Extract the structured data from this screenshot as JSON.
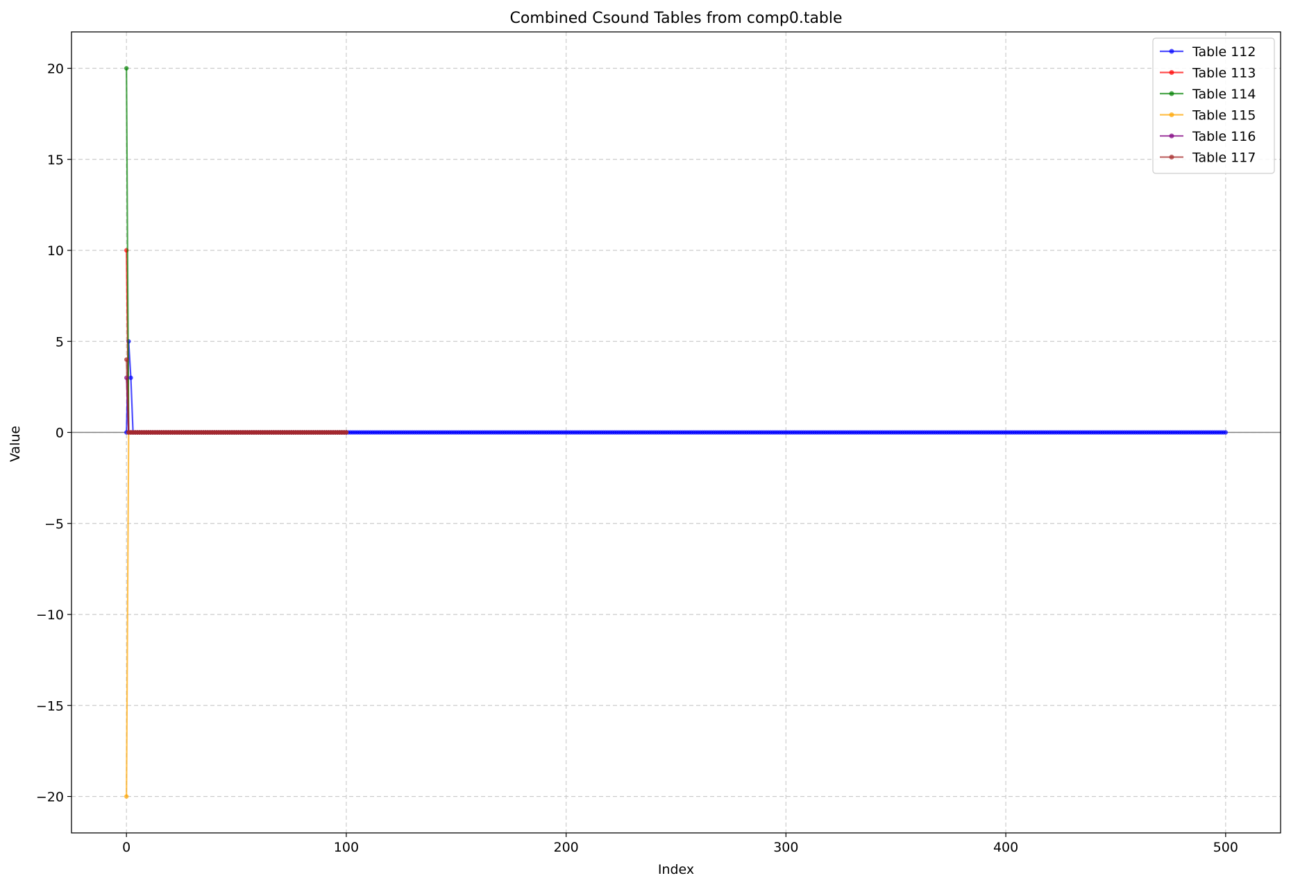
{
  "chart_data": {
    "type": "line",
    "title": "Combined Csound Tables from comp0.table",
    "xlabel": "Index",
    "ylabel": "Value",
    "xlim": [
      -25,
      525
    ],
    "ylim": [
      -22,
      22
    ],
    "xticks": [
      0,
      100,
      200,
      300,
      400,
      500
    ],
    "yticks": [
      -20,
      -15,
      -10,
      -5,
      0,
      5,
      10,
      15,
      20
    ],
    "grid": true,
    "legend_position": "top-right",
    "reference_line": {
      "y": 0,
      "color": "#808080"
    },
    "series": [
      {
        "name": "Table 112",
        "color": "#0000ff",
        "length": 501,
        "points": [
          [
            0,
            0
          ],
          [
            1,
            5
          ],
          [
            2,
            3
          ],
          [
            3,
            0
          ]
        ],
        "tail_value": 0
      },
      {
        "name": "Table 113",
        "color": "#ff0000",
        "length": 101,
        "points": [
          [
            0,
            10
          ],
          [
            1,
            0
          ]
        ],
        "tail_value": 0
      },
      {
        "name": "Table 114",
        "color": "#008000",
        "length": 101,
        "points": [
          [
            0,
            20
          ],
          [
            1,
            0
          ]
        ],
        "tail_value": 0
      },
      {
        "name": "Table 115",
        "color": "#ffa500",
        "length": 101,
        "points": [
          [
            0,
            -20
          ],
          [
            1,
            0
          ]
        ],
        "tail_value": 0
      },
      {
        "name": "Table 116",
        "color": "#800080",
        "length": 101,
        "points": [
          [
            0,
            3
          ],
          [
            1,
            0
          ]
        ],
        "tail_value": 0
      },
      {
        "name": "Table 117",
        "color": "#a52a2a",
        "length": 101,
        "points": [
          [
            0,
            4
          ],
          [
            1,
            0
          ]
        ],
        "tail_value": 0
      }
    ]
  }
}
